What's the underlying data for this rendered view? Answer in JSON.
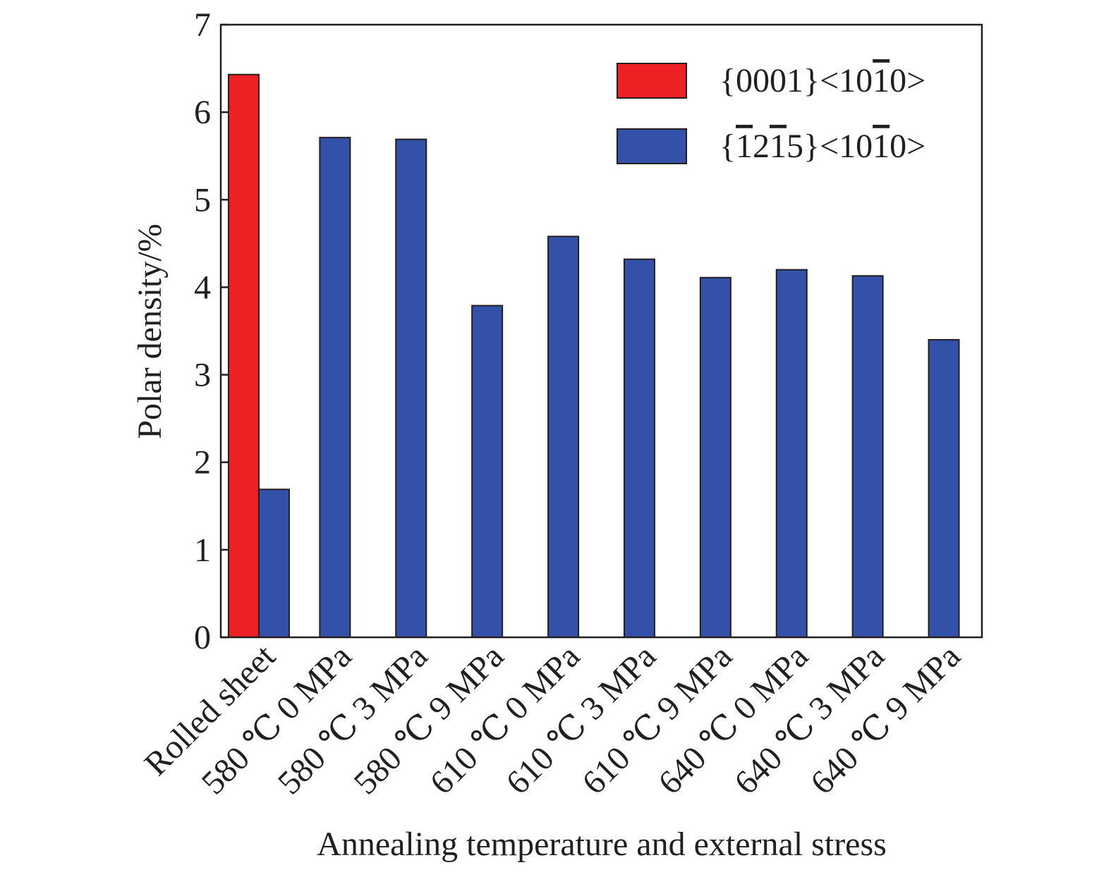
{
  "chart_data": {
    "type": "bar",
    "title": "",
    "xlabel": "Annealing temperature and external stress",
    "ylabel": "Polar density/%",
    "ylim": [
      0,
      7
    ],
    "yticks": [
      "0",
      "1",
      "2",
      "3",
      "4",
      "5",
      "6",
      "7"
    ],
    "grid": false,
    "legend_position": "top-right",
    "categories": [
      "Rolled sheet",
      "580 ℃ 0 MPa",
      "580 ℃ 3 MPa",
      "580 ℃ 9 MPa",
      "610 ℃ 0 MPa",
      "610 ℃ 3 MPa",
      "610 ℃ 9 MPa",
      "640 ℃ 0 MPa",
      "640 ℃ 3 MPa",
      "640 ℃ 9 MPa"
    ],
    "series": [
      {
        "name": "{0001}<1010>",
        "legend_parts": [
          {
            "t": "{0001}<10",
            "o": false
          },
          {
            "t": "1",
            "o": true
          },
          {
            "t": "0>",
            "o": false
          }
        ],
        "color": "#ed2024",
        "values": [
          6.43,
          null,
          null,
          null,
          null,
          null,
          null,
          null,
          null,
          null
        ]
      },
      {
        "name": "{1215}<1010>",
        "legend_parts": [
          {
            "t": "{",
            "o": false
          },
          {
            "t": "1",
            "o": true
          },
          {
            "t": "2",
            "o": false
          },
          {
            "t": "1",
            "o": true
          },
          {
            "t": "5}<10",
            "o": false
          },
          {
            "t": "1",
            "o": true
          },
          {
            "t": "0>",
            "o": false
          }
        ],
        "color": "#3451a9",
        "values": [
          1.69,
          5.71,
          5.69,
          3.79,
          4.58,
          4.32,
          4.11,
          4.2,
          4.13,
          3.4
        ]
      }
    ]
  }
}
